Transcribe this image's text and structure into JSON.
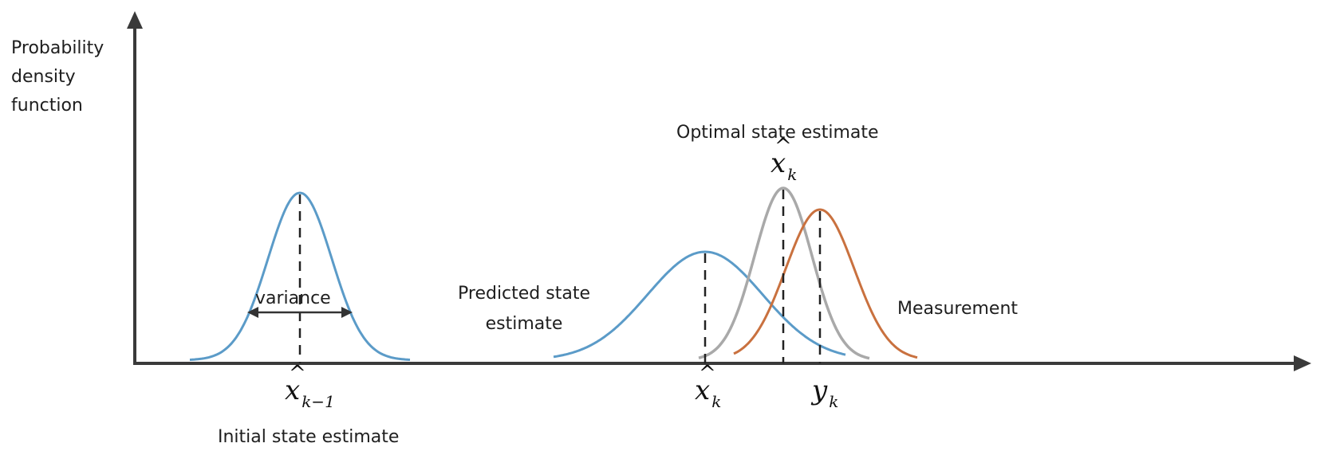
{
  "axis": {
    "y_label_lines": [
      "Probability",
      "density",
      "function"
    ]
  },
  "curves": [
    {
      "id": "initial",
      "color": "#5b9bc8",
      "peak_label": "x̂ k−1",
      "caption": "Initial state estimate"
    },
    {
      "id": "predicted",
      "color": "#5b9bc8",
      "caption_lines": [
        "Predicted state",
        "estimate"
      ]
    },
    {
      "id": "optimal",
      "color": "#a9a9a9",
      "caption": "Optimal state estimate"
    },
    {
      "id": "measurement",
      "color": "#c9713f",
      "caption": "Measurement"
    }
  ],
  "annotations": {
    "variance": "variance",
    "xhat_prev": {
      "symbol": "x",
      "subscript": "k−1"
    },
    "xhat_k_bottom": {
      "symbol": "x",
      "subscript": "k"
    },
    "xhat_k_top": {
      "symbol": "x",
      "subscript": "k"
    },
    "y_k": {
      "symbol": "y",
      "subscript": "k"
    }
  },
  "colors": {
    "axis": "#3a3a3a",
    "blue": "#5b9bc8",
    "gray": "#a9a9a9",
    "orange": "#c9713f"
  }
}
